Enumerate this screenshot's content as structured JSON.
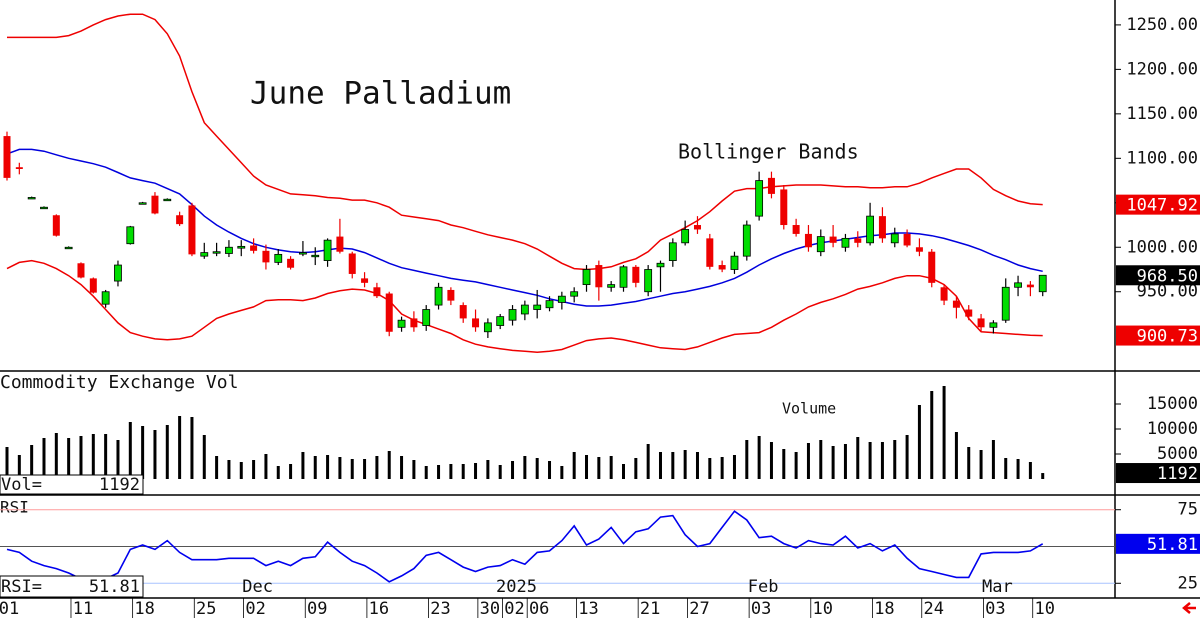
{
  "chart_data": [
    {
      "type": "candlestick",
      "title": "June Palladium",
      "annotation": "Bollinger Bands",
      "open": [
        1125,
        1090,
        1056,
        1045,
        1036,
        1000,
        982,
        965,
        936,
        962,
        1004,
        1050,
        1058,
        1054,
        1036,
        1047,
        990,
        994,
        993,
        999,
        1002,
        996,
        983,
        987,
        993,
        991,
        985,
        1012,
        993,
        965,
        955,
        948,
        910,
        920,
        912,
        935,
        952,
        935,
        920,
        905,
        912,
        918,
        925,
        930,
        932,
        938,
        945,
        958,
        980,
        955,
        955,
        978,
        950,
        978,
        985,
        1005,
        1025,
        1010,
        980,
        975,
        990,
        1035,
        1078,
        1065,
        1025,
        1015,
        995,
        1012,
        1000,
        1010,
        1005,
        1035,
        1005,
        1015,
        1000,
        995,
        955,
        940,
        930,
        920,
        910,
        918,
        955,
        958,
        950
      ],
      "high": [
        1130,
        1095,
        1057,
        1046,
        1037,
        1001,
        983,
        966,
        952,
        985,
        1024,
        1051,
        1062,
        1055,
        1040,
        1050,
        1005,
        1005,
        1008,
        1008,
        1010,
        1003,
        998,
        990,
        1007,
        1000,
        1010,
        1032,
        995,
        972,
        960,
        950,
        922,
        928,
        935,
        960,
        955,
        938,
        930,
        920,
        925,
        935,
        940,
        952,
        945,
        950,
        955,
        980,
        985,
        962,
        980,
        980,
        980,
        985,
        1010,
        1030,
        1035,
        1015,
        985,
        995,
        1030,
        1085,
        1085,
        1070,
        1032,
        1025,
        1020,
        1025,
        1015,
        1018,
        1050,
        1045,
        1022,
        1020,
        1010,
        998,
        958,
        945,
        935,
        925,
        918,
        965,
        968,
        962,
        968
      ],
      "low": [
        1075,
        1082,
        1055,
        1044,
        1012,
        999,
        965,
        948,
        932,
        956,
        1003,
        1049,
        1037,
        1053,
        1024,
        990,
        987,
        990,
        989,
        990,
        993,
        975,
        980,
        975,
        990,
        980,
        978,
        993,
        965,
        955,
        943,
        900,
        905,
        905,
        906,
        930,
        935,
        915,
        905,
        898,
        908,
        912,
        918,
        920,
        928,
        930,
        938,
        950,
        940,
        950,
        950,
        955,
        945,
        950,
        978,
        1002,
        1015,
        975,
        972,
        970,
        985,
        1030,
        1055,
        1020,
        1012,
        995,
        990,
        1000,
        995,
        1000,
        1002,
        1005,
        1000,
        1000,
        990,
        955,
        935,
        920,
        918,
        905,
        903,
        915,
        945,
        945,
        945
      ],
      "close": [
        1078,
        1088,
        1056,
        1045,
        1013,
        1000,
        966,
        949,
        950,
        980,
        1023,
        1050,
        1038,
        1054,
        1026,
        992,
        994,
        995,
        1000,
        1001,
        996,
        983,
        992,
        977,
        994,
        991,
        1008,
        995,
        970,
        960,
        945,
        905,
        918,
        910,
        930,
        955,
        940,
        920,
        910,
        915,
        922,
        930,
        935,
        935,
        940,
        945,
        950,
        975,
        955,
        958,
        978,
        960,
        975,
        982,
        1005,
        1020,
        1020,
        978,
        975,
        990,
        1025,
        1075,
        1060,
        1025,
        1015,
        1000,
        1012,
        1005,
        1010,
        1005,
        1035,
        1010,
        1015,
        1002,
        995,
        960,
        940,
        932,
        922,
        910,
        915,
        955,
        960,
        955,
        968.5
      ],
      "close_label": "968.50",
      "up_color": "#00dd00",
      "down_color": "#ee0000",
      "bands": [
        {
          "color": "#ee0000",
          "last_label": "1047.92",
          "values": [
            1236,
            1236,
            1236,
            1236,
            1236,
            1238,
            1243,
            1250,
            1256,
            1260,
            1262,
            1262,
            1256,
            1240,
            1215,
            1175,
            1140,
            1125,
            1110,
            1095,
            1080,
            1070,
            1065,
            1060,
            1059,
            1058,
            1056,
            1055,
            1053,
            1053,
            1050,
            1045,
            1036,
            1034,
            1032,
            1030,
            1025,
            1022,
            1018,
            1014,
            1011,
            1008,
            1004,
            998,
            990,
            982,
            976,
            975,
            976,
            978,
            983,
            987,
            995,
            1008,
            1015,
            1022,
            1030,
            1040,
            1052,
            1063,
            1066,
            1066,
            1068,
            1069,
            1070,
            1070,
            1070,
            1069,
            1068,
            1068,
            1067,
            1067,
            1068,
            1068,
            1072,
            1078,
            1083,
            1088,
            1088,
            1078,
            1065,
            1058,
            1052,
            1049,
            1047.92
          ]
        },
        {
          "color": "#0000dd",
          "values": [
            1105,
            1110,
            1110,
            1108,
            1104,
            1100,
            1097,
            1094,
            1090,
            1084,
            1078,
            1075,
            1072,
            1066,
            1060,
            1048,
            1035,
            1025,
            1017,
            1010,
            1004,
            1000,
            997,
            995,
            994,
            995,
            997,
            999,
            998,
            994,
            988,
            982,
            977,
            974,
            971,
            968,
            965,
            963,
            961,
            958,
            955,
            952,
            949,
            946,
            942,
            939,
            936,
            934,
            934,
            935,
            937,
            939,
            942,
            945,
            948,
            950,
            953,
            956,
            960,
            965,
            972,
            980,
            987,
            993,
            998,
            1002,
            1005,
            1007,
            1009,
            1011,
            1013,
            1014,
            1016,
            1016,
            1015,
            1013,
            1010,
            1006,
            1002,
            997,
            991,
            986,
            980,
            976,
            973
          ]
        },
        {
          "color": "#ee0000",
          "last_label": "900.73",
          "values": [
            976,
            983,
            985,
            982,
            976,
            968,
            958,
            945,
            930,
            915,
            904,
            900,
            897,
            896,
            897,
            900,
            910,
            920,
            925,
            929,
            933,
            940,
            941,
            941,
            940,
            943,
            948,
            951,
            953,
            952,
            948,
            940,
            925,
            918,
            913,
            908,
            903,
            896,
            891,
            888,
            886,
            884,
            883,
            882,
            883,
            885,
            890,
            895,
            897,
            898,
            896,
            893,
            890,
            887,
            886,
            885,
            888,
            893,
            898,
            902,
            903,
            904,
            910,
            918,
            925,
            933,
            938,
            942,
            947,
            953,
            956,
            960,
            965,
            968,
            968,
            965,
            958,
            945,
            920,
            905,
            904,
            903,
            902,
            901,
            900.73
          ]
        }
      ],
      "ylim": [
        862,
        1278
      ],
      "yticks": [
        {
          "value": 950,
          "label": "950.00"
        },
        {
          "value": 1000,
          "label": "1000.00"
        },
        {
          "value": 1050,
          "label": "1050.00"
        },
        {
          "value": 1100,
          "label": "1100.00"
        },
        {
          "value": 1150,
          "label": "1150.00"
        },
        {
          "value": 1200,
          "label": "1200.00"
        },
        {
          "value": 1250,
          "label": "1250.00"
        }
      ]
    },
    {
      "type": "bar",
      "title": "Commodity Exchange Vol",
      "annotation": "Volume",
      "readout_label": "Vol=",
      "color": "#000000",
      "values": [
        6400,
        4800,
        6800,
        8200,
        9200,
        8200,
        8600,
        9000,
        9000,
        7800,
        11400,
        10600,
        9800,
        10800,
        12600,
        12400,
        8800,
        4600,
        3800,
        3400,
        3800,
        5000,
        2600,
        3000,
        5400,
        4600,
        4800,
        4400,
        4000,
        4000,
        4600,
        5600,
        4600,
        3800,
        2600,
        2800,
        3000,
        3000,
        3200,
        3800,
        2800,
        3600,
        4600,
        4200,
        3600,
        2600,
        5400,
        4800,
        4400,
        4600,
        3000,
        4200,
        7000,
        5400,
        5400,
        5800,
        5400,
        4200,
        4400,
        4800,
        7800,
        8600,
        7400,
        6000,
        5400,
        7200,
        7800,
        6600,
        7000,
        8400,
        7400,
        7400,
        7800,
        8800,
        14800,
        17600,
        18600,
        9400,
        6400,
        5800,
        7800,
        4200,
        4000,
        3400,
        1192
      ],
      "ylim": [
        0,
        21400
      ],
      "yticks": [
        5000,
        10000,
        15000
      ]
    },
    {
      "type": "line",
      "title": "RSI",
      "readout_label": "RSI=",
      "color": "#0000ee",
      "values": [
        48,
        46,
        40,
        37,
        35,
        32,
        28,
        27,
        28,
        32,
        48,
        51,
        48,
        54,
        46,
        41,
        41,
        41,
        42,
        42,
        42,
        37,
        40,
        37,
        42,
        43,
        53,
        46,
        40,
        37,
        32,
        26,
        30,
        35,
        44,
        46,
        41,
        36,
        33,
        36,
        37,
        41,
        38,
        46,
        47,
        54,
        64,
        51,
        55,
        63,
        52,
        60,
        62,
        70,
        71,
        58,
        50,
        52,
        63,
        74,
        68,
        56,
        57,
        52,
        49,
        54,
        52,
        51,
        57,
        49,
        52,
        47,
        51,
        42,
        35,
        33,
        31,
        29,
        29,
        45,
        46,
        46,
        46,
        47,
        51.81
      ],
      "ylim": [
        15,
        85
      ],
      "yticks": [
        25,
        75
      ],
      "midline": 50,
      "categories": [
        "01",
        null,
        null,
        null,
        null,
        null,
        "11",
        null,
        null,
        null,
        null,
        "18",
        null,
        null,
        null,
        null,
        "25",
        null,
        null,
        null,
        "02",
        null,
        null,
        null,
        null,
        "09",
        null,
        null,
        null,
        null,
        "16",
        null,
        null,
        null,
        null,
        "23",
        null,
        null,
        null,
        "30",
        null,
        "02",
        null,
        "06",
        null,
        null,
        null,
        "13",
        null,
        null,
        null,
        null,
        "21",
        null,
        null,
        null,
        "27",
        null,
        null,
        null,
        null,
        "03",
        null,
        null,
        null,
        null,
        "10",
        null,
        null,
        null,
        null,
        "18",
        null,
        null,
        null,
        "24",
        null,
        null,
        null,
        null,
        "03",
        null,
        null,
        null,
        "10"
      ],
      "month_labels": [
        null,
        null,
        null,
        null,
        null,
        null,
        null,
        null,
        null,
        null,
        null,
        null,
        null,
        null,
        null,
        null,
        null,
        null,
        null,
        null,
        "Dec",
        null,
        null,
        null,
        null,
        null,
        null,
        null,
        null,
        null,
        null,
        null,
        null,
        null,
        null,
        null,
        null,
        null,
        null,
        null,
        null,
        "2025",
        null,
        null,
        null,
        null,
        null,
        null,
        null,
        null,
        null,
        null,
        null,
        null,
        null,
        null,
        null,
        null,
        null,
        null,
        null,
        "Feb",
        null,
        null,
        null,
        null,
        null,
        null,
        null,
        null,
        null,
        null,
        null,
        null,
        null,
        null,
        null,
        null,
        null,
        null,
        "Mar",
        null,
        null,
        null,
        null
      ]
    }
  ]
}
